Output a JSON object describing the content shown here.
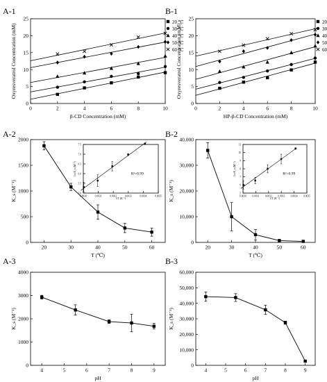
{
  "chart_data": [
    {
      "id": "A-1",
      "panel_label": "A-1",
      "type": "scatter",
      "xlabel": "β-CD Concentration (mM)",
      "ylabel": "Oxyresveratrol Concentration (mM)",
      "xlim": [
        0,
        10
      ],
      "ylim": [
        0,
        25
      ],
      "xticks": [
        "0",
        "2",
        "4",
        "6",
        "8",
        "10"
      ],
      "yticks": [
        "0",
        "5",
        "10",
        "15",
        "20",
        "25"
      ],
      "legend_position": "top-right",
      "series": [
        {
          "name": "20 ℃",
          "marker": "square",
          "x": [
            2,
            4,
            6,
            8,
            10
          ],
          "y": [
            2.7,
            4.6,
            6.1,
            7.8,
            9.1
          ]
        },
        {
          "name": "30 ℃",
          "marker": "circle",
          "x": [
            2,
            4,
            6,
            8,
            10
          ],
          "y": [
            4.8,
            6.4,
            8.0,
            8.8,
            10.9
          ]
        },
        {
          "name": "40 ℃",
          "marker": "triangle",
          "x": [
            2,
            4,
            6,
            8,
            10
          ],
          "y": [
            8.0,
            9.0,
            10.4,
            11.8,
            14.0
          ]
        },
        {
          "name": "50 ℃",
          "marker": "diamond",
          "x": [
            2,
            4,
            6,
            8,
            10
          ],
          "y": [
            12.1,
            13.8,
            14.7,
            16.7,
            18.2
          ]
        },
        {
          "name": "60 ℃",
          "marker": "star",
          "x": [
            2,
            4,
            6,
            8,
            10
          ],
          "y": [
            14.6,
            15.4,
            17.3,
            19.6,
            20.7
          ]
        }
      ]
    },
    {
      "id": "B-1",
      "panel_label": "B-1",
      "type": "scatter",
      "xlabel": "HP-β-CD Concentration (mM)",
      "ylabel": "Oxyresveratrol Concentration (mM)",
      "xlim": [
        0,
        10
      ],
      "ylim": [
        0,
        25
      ],
      "xticks": [
        "0",
        "2",
        "4",
        "6",
        "8",
        "10"
      ],
      "yticks": [
        "0",
        "5",
        "10",
        "15",
        "20",
        "25"
      ],
      "legend_position": "top-right",
      "series": [
        {
          "name": "20 ℃",
          "marker": "square",
          "x": [
            2,
            4,
            6,
            8,
            10
          ],
          "y": [
            4.5,
            6.3,
            7.6,
            9.9,
            12.2
          ]
        },
        {
          "name": "30 ℃",
          "marker": "circle",
          "x": [
            2,
            4,
            6,
            8,
            10
          ],
          "y": [
            6.2,
            7.7,
            9.6,
            11.5,
            13.4
          ]
        },
        {
          "name": "40 ℃",
          "marker": "triangle",
          "x": [
            2,
            4,
            6,
            8,
            10
          ],
          "y": [
            9.5,
            10.8,
            12.2,
            15.0,
            17.0
          ]
        },
        {
          "name": "50 ℃",
          "marker": "diamond",
          "x": [
            2,
            4,
            6,
            8,
            10
          ],
          "y": [
            12.4,
            15.4,
            16.4,
            18.7,
            20.3
          ]
        },
        {
          "name": "60 ℃",
          "marker": "star",
          "x": [
            2,
            4,
            6,
            8,
            10
          ],
          "y": [
            15.4,
            17.2,
            19.1,
            20.6,
            21.8
          ]
        }
      ]
    },
    {
      "id": "A-2",
      "panel_label": "A-2",
      "type": "line",
      "xlabel": "T (℃)",
      "ylabel": "K_s (M⁻¹)",
      "xlim": [
        15,
        65
      ],
      "ylim": [
        0,
        2000
      ],
      "xticks": [
        "20",
        "30",
        "40",
        "50",
        "60"
      ],
      "yticks": [
        "0",
        "500",
        "1000",
        "1500",
        "2000"
      ],
      "series": [
        {
          "x": [
            20,
            30,
            40,
            50,
            60
          ],
          "y": [
            1880,
            1080,
            590,
            280,
            200
          ],
          "err": [
            80,
            70,
            140,
            90,
            80
          ]
        }
      ],
      "inset": {
        "xlabel": "1/T (K⁻¹)",
        "ylabel": "Ln K_s (M⁻¹)",
        "xticks": [
          "0.0030",
          "0.0031",
          "0.0032",
          "0.0033",
          "0.0034",
          "0.0035"
        ],
        "yticks": [
          "5.0",
          "5.5",
          "6.0",
          "6.5",
          "7.0",
          "7.5"
        ],
        "xlim": [
          0.003,
          0.0035
        ],
        "ylim": [
          5.0,
          7.5
        ],
        "annotation": "R²=0.99",
        "x": [
          0.003003,
          0.003096,
          0.003193,
          0.003299,
          0.003411
        ],
        "y": [
          5.31,
          5.64,
          6.38,
          6.98,
          7.54
        ],
        "err": [
          0.25,
          0.3,
          0.24,
          0.05,
          0.04
        ]
      }
    },
    {
      "id": "B-2",
      "panel_label": "B-2",
      "type": "line",
      "xlabel": "T (℃)",
      "ylabel": "K_s (M⁻¹)",
      "xlim": [
        15,
        65
      ],
      "ylim": [
        0,
        40000
      ],
      "xticks": [
        "20",
        "30",
        "40",
        "50",
        "60"
      ],
      "yticks": [
        "0",
        "10,000",
        "20,000",
        "30,000",
        "40,000"
      ],
      "series": [
        {
          "x": [
            20,
            30,
            40,
            50,
            60
          ],
          "y": [
            35800,
            10000,
            3000,
            700,
            400
          ],
          "err": [
            3000,
            5500,
            2000,
            500,
            300
          ]
        }
      ],
      "inset": {
        "xlabel": "1/T (K⁻¹)",
        "ylabel": "Ln K_s (M⁻¹)",
        "xticks": [
          "0.0030",
          "0.0031",
          "0.0032",
          "0.0033",
          "0.0034",
          "0.0035"
        ],
        "yticks": [
          "5",
          "6",
          "7",
          "8",
          "9",
          "10",
          "11"
        ],
        "xlim": [
          0.003,
          0.0035
        ],
        "ylim": [
          5,
          11
        ],
        "annotation": "R²=0.99",
        "x": [
          0.003003,
          0.003096,
          0.003193,
          0.003299,
          0.003411
        ],
        "y": [
          6.0,
          6.55,
          8.0,
          9.2,
          10.5
        ],
        "err": [
          0.5,
          0.4,
          0.5,
          0.6,
          0.1
        ]
      }
    },
    {
      "id": "A-3",
      "panel_label": "A-3",
      "type": "line",
      "xlabel": "pH",
      "ylabel": "K_s (M⁻¹)",
      "xlim": [
        3.5,
        9.5
      ],
      "ylim": [
        0,
        4000
      ],
      "xticks": [
        "4",
        "5",
        "6",
        "7",
        "8",
        "9"
      ],
      "yticks": [
        "0",
        "1000",
        "2000",
        "3000",
        "4000"
      ],
      "series": [
        {
          "x": [
            4,
            5.5,
            7,
            8,
            9
          ],
          "y": [
            2930,
            2380,
            1880,
            1820,
            1680
          ],
          "err": [
            80,
            220,
            80,
            380,
            120
          ]
        }
      ]
    },
    {
      "id": "B-3",
      "panel_label": "B-3",
      "type": "line",
      "xlabel": "pH",
      "ylabel": "K_s (M⁻¹)",
      "xlim": [
        3.5,
        9.5
      ],
      "ylim": [
        0,
        60000
      ],
      "xticks": [
        "4",
        "5",
        "6",
        "7",
        "8",
        "9"
      ],
      "yticks": [
        "0",
        "10,000",
        "20,000",
        "30,000",
        "40,000",
        "50,000",
        "60,000"
      ],
      "series": [
        {
          "x": [
            4,
            5.5,
            7,
            8,
            9
          ],
          "y": [
            44300,
            43700,
            35800,
            27500,
            2700
          ],
          "err": [
            3000,
            2500,
            3000,
            1000,
            400
          ]
        }
      ]
    }
  ]
}
